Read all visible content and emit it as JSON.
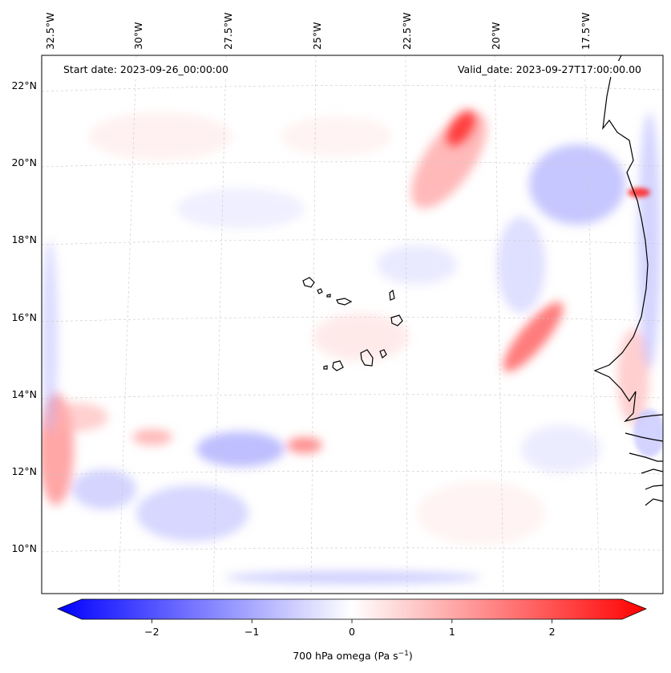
{
  "map": {
    "start_label": "Start date: 2023-09-26_00:00:00",
    "valid_label": "Valid_date: 2023-09-27T17:00:00.00",
    "lon_labels": [
      "32.5°W",
      "30°W",
      "27.5°W",
      "25°W",
      "22.5°W",
      "20°W",
      "17.5°W"
    ],
    "lat_labels": [
      "22°N",
      "20°N",
      "18°N",
      "16°N",
      "14°N",
      "12°N",
      "10°N"
    ],
    "field": "700 hPa omega",
    "units": "Pa s⁻¹"
  },
  "colorbar": {
    "label_prefix": "700 hPa omega (Pa s",
    "label_exp": "−1",
    "label_suffix": ")",
    "ticks": [
      "−2",
      "−1",
      "0",
      "1",
      "2"
    ],
    "range": [
      -2.7,
      2.7
    ],
    "colormap": "bwr",
    "low_color": "#0000ff",
    "mid_color": "#ffffff",
    "high_color": "#ff0000",
    "extend": "both"
  }
}
